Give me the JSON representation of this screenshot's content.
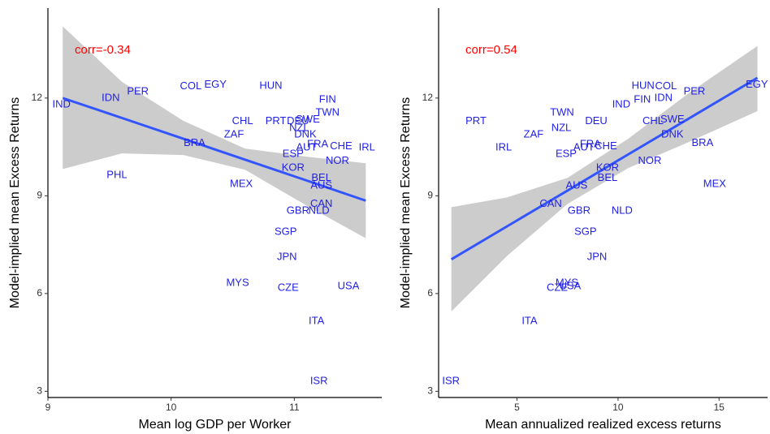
{
  "chart_data": [
    {
      "type": "scatter",
      "x_label": "Mean log GDP per Worker",
      "y_label": "Model-implied mean Excess Returns",
      "annotation": "corr=-0.34",
      "xlim": [
        9.0,
        11.71
      ],
      "ylim": [
        2.81,
        14.76
      ],
      "xticks": [
        9,
        10,
        11
      ],
      "yticks": [
        3,
        6,
        9,
        12
      ],
      "color": "#1f1fe6",
      "categories": [
        "IND",
        "IDN",
        "PER",
        "COL",
        "EGY",
        "HUN",
        "FIN",
        "TWN",
        "CHL",
        "PRT",
        "DEU",
        "SWE",
        "NZL",
        "DNK",
        "ZAF",
        "BRA",
        "FRA",
        "AUT",
        "CHE",
        "IRL",
        "ESP",
        "NOR",
        "KOR",
        "BEL",
        "AUS",
        "PHL",
        "MEX",
        "CAN",
        "GBR",
        "NLD",
        "SGP",
        "JPN",
        "MYS",
        "CZE",
        "USA",
        "ITA",
        "ISR"
      ],
      "x": [
        9.11,
        9.51,
        9.73,
        10.16,
        10.36,
        10.81,
        11.27,
        11.27,
        10.58,
        10.85,
        11.03,
        11.11,
        11.04,
        11.09,
        10.51,
        10.19,
        11.19,
        11.1,
        11.38,
        11.59,
        10.99,
        11.35,
        10.99,
        11.22,
        11.22,
        9.56,
        10.57,
        11.22,
        11.03,
        11.2,
        10.93,
        10.94,
        10.54,
        10.95,
        11.44,
        11.18,
        11.2
      ],
      "values": [
        11.8,
        12.0,
        12.2,
        12.35,
        12.4,
        12.37,
        11.95,
        11.55,
        11.28,
        11.28,
        11.28,
        11.33,
        11.08,
        10.88,
        10.88,
        10.61,
        10.58,
        10.48,
        10.51,
        10.48,
        10.28,
        10.06,
        9.86,
        9.54,
        9.31,
        9.63,
        9.36,
        8.74,
        8.54,
        8.54,
        7.89,
        7.12,
        6.32,
        6.17,
        6.22,
        5.15,
        3.31
      ],
      "fit": {
        "color": "#3355ff",
        "band_color": "#cccccc",
        "x": [
          9.12,
          9.6,
          10.1,
          10.6,
          11.1,
          11.58
        ],
        "values": [
          12.0,
          11.39,
          10.75,
          10.11,
          9.47,
          8.85
        ],
        "lower": [
          9.82,
          10.3,
          10.25,
          9.8,
          8.7,
          7.7
        ],
        "upper": [
          14.2,
          12.5,
          11.3,
          10.45,
          10.2,
          10.0
        ]
      }
    },
    {
      "type": "scatter",
      "x_label": "Mean annualized realized excess returns",
      "y_label": "Model-implied mean Excess Returns",
      "annotation": "corr=0.54",
      "xlim": [
        1.12,
        17.4
      ],
      "ylim": [
        2.81,
        14.76
      ],
      "xticks": [
        5,
        10,
        15
      ],
      "yticks": [
        3,
        6,
        9,
        12
      ],
      "color": "#1f1fe6",
      "categories": [
        "EGY",
        "HUN",
        "COL",
        "PER",
        "FIN",
        "IDN",
        "IND",
        "TWN",
        "SWE",
        "CHL",
        "NZL",
        "DEU",
        "PRT",
        "DNK",
        "ZAF",
        "FRA",
        "AUT",
        "CHE",
        "IRL",
        "ESP",
        "BRA",
        "NOR",
        "KOR",
        "BEL",
        "AUS",
        "MEX",
        "CAN",
        "GBR",
        "NLD",
        "SGP",
        "JPN",
        "MYS",
        "CZE",
        "USA",
        "ITA",
        "ISR"
      ],
      "x": [
        16.87,
        11.24,
        12.37,
        13.78,
        11.2,
        12.25,
        10.16,
        7.23,
        12.69,
        11.73,
        7.19,
        8.92,
        2.97,
        12.69,
        5.82,
        8.63,
        8.31,
        9.4,
        4.34,
        7.43,
        14.18,
        11.57,
        9.48,
        9.48,
        7.95,
        14.78,
        6.67,
        8.07,
        10.2,
        8.39,
        8.96,
        7.47,
        6.99,
        7.63,
        5.62,
        1.73
      ],
      "values": [
        12.4,
        12.37,
        12.35,
        12.2,
        11.95,
        12.0,
        11.8,
        11.55,
        11.33,
        11.28,
        11.08,
        11.28,
        11.28,
        10.88,
        10.88,
        10.58,
        10.48,
        10.51,
        10.48,
        10.28,
        10.61,
        10.06,
        9.86,
        9.54,
        9.31,
        9.36,
        8.74,
        8.54,
        8.54,
        7.89,
        7.12,
        6.32,
        6.17,
        6.22,
        5.15,
        3.31
      ],
      "fit": {
        "color": "#3355ff",
        "band_color": "#cccccc",
        "x": [
          1.75,
          4.5,
          7.5,
          10.5,
          13.5,
          16.9
        ],
        "values": [
          7.05,
          8.06,
          9.16,
          10.27,
          11.37,
          12.62
        ],
        "lower": [
          5.45,
          7.15,
          8.75,
          9.85,
          10.65,
          11.6
        ],
        "upper": [
          8.65,
          8.95,
          9.55,
          10.75,
          12.15,
          13.6
        ]
      }
    }
  ]
}
